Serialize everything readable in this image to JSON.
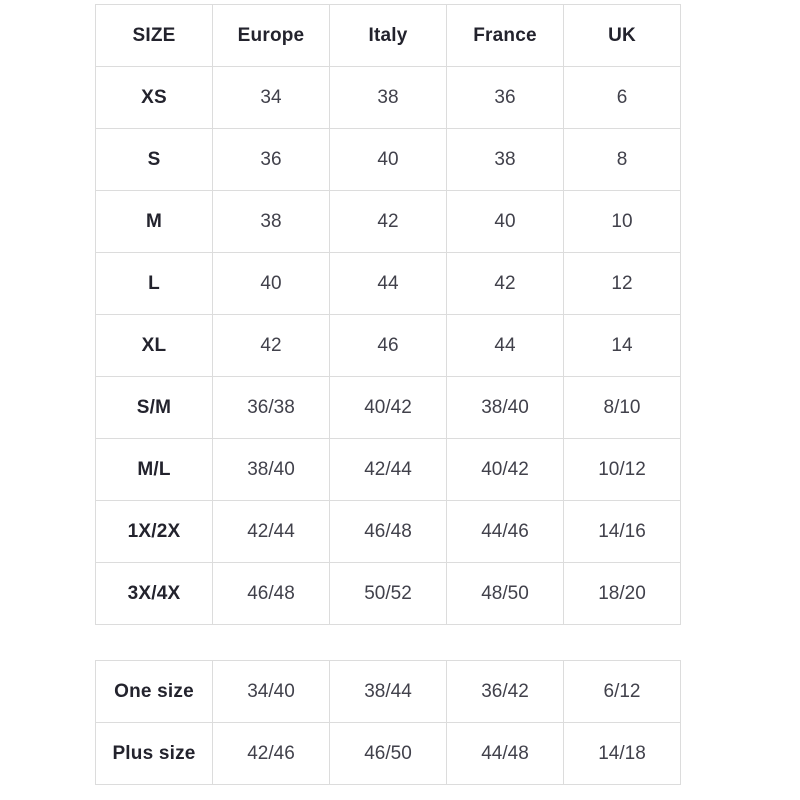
{
  "size_chart": {
    "headers": [
      "SIZE",
      "Europe",
      "Italy",
      "France",
      "UK"
    ],
    "rows": [
      [
        "XS",
        "34",
        "38",
        "36",
        "6"
      ],
      [
        "S",
        "36",
        "40",
        "38",
        "8"
      ],
      [
        "M",
        "38",
        "42",
        "40",
        "10"
      ],
      [
        "L",
        "40",
        "44",
        "42",
        "12"
      ],
      [
        "XL",
        "42",
        "46",
        "44",
        "14"
      ],
      [
        "S/M",
        "36/38",
        "40/42",
        "38/40",
        "8/10"
      ],
      [
        "M/L",
        "38/40",
        "42/44",
        "40/42",
        "10/12"
      ],
      [
        "1X/2X",
        "42/44",
        "46/48",
        "44/46",
        "14/16"
      ],
      [
        "3X/4X",
        "46/48",
        "50/52",
        "48/50",
        "18/20"
      ]
    ]
  },
  "special_sizes": {
    "rows": [
      [
        "One size",
        "34/40",
        "38/44",
        "36/42",
        "6/12"
      ],
      [
        "Plus size",
        "42/46",
        "46/50",
        "44/48",
        "14/18"
      ]
    ]
  },
  "colors": {
    "border": "#dcdcdc",
    "heading_text": "#23232d",
    "value_text": "#41414b",
    "background": "#ffffff"
  }
}
